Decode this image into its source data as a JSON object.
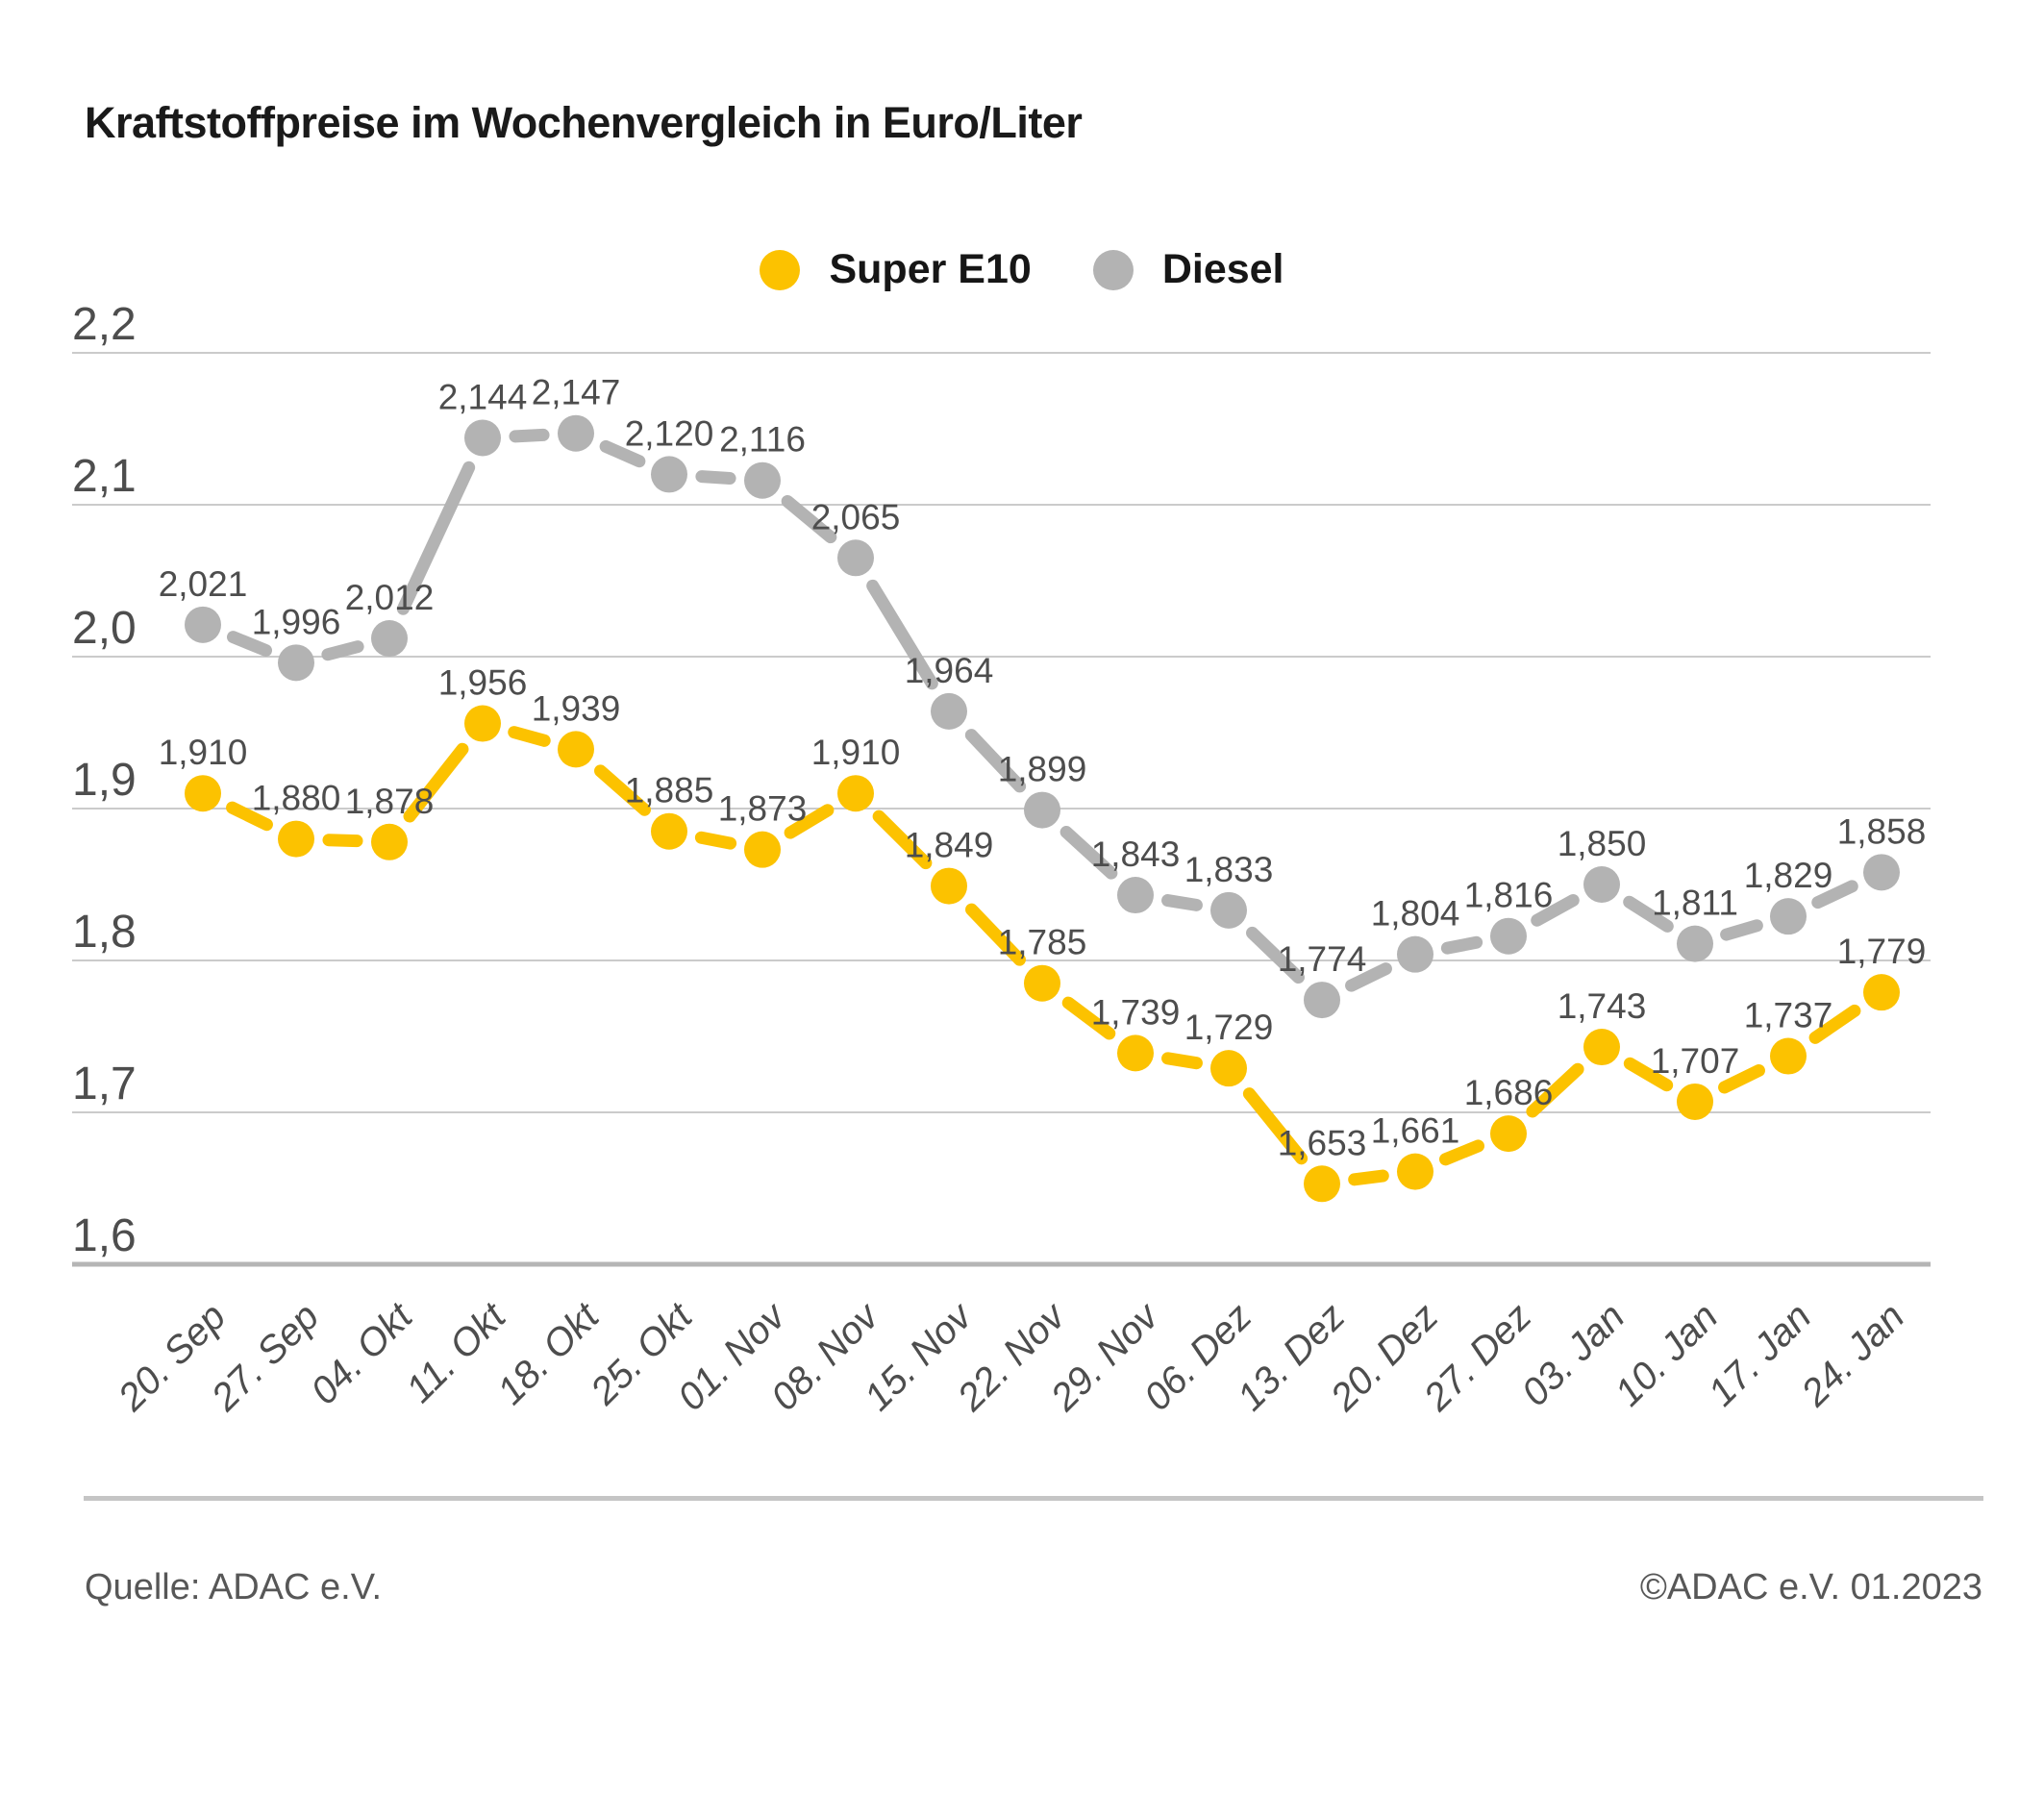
{
  "title": "Kraftstoffpreise im Wochenvergleich in Euro/Liter",
  "legend": {
    "items": [
      {
        "label": "Super E10",
        "color": "#FCC200"
      },
      {
        "label": "Diesel",
        "color": "#B3B3B3"
      }
    ]
  },
  "footer": {
    "source": "Quelle: ADAC e.V.",
    "copyright": "©ADAC e.V. 01.2023"
  },
  "chart_data": {
    "type": "line",
    "title": "Kraftstoffpreise im Wochenvergleich in Euro/Liter",
    "x_categories": [
      "20. Sep",
      "27. Sep",
      "04. Okt",
      "11. Okt",
      "18. Okt",
      "25. Okt",
      "01. Nov",
      "08. Nov",
      "15. Nov",
      "22. Nov",
      "29. Nov",
      "06. Dez",
      "13. Dez",
      "20. Dez",
      "27. Dez",
      "03. Jan",
      "10. Jan",
      "17. Jan",
      "24. Jan"
    ],
    "series": [
      {
        "name": "Super E10",
        "color": "#FCC200",
        "values": [
          1.91,
          1.88,
          1.878,
          1.956,
          1.939,
          1.885,
          1.873,
          1.91,
          1.849,
          1.785,
          1.739,
          1.729,
          1.653,
          1.661,
          1.686,
          1.743,
          1.707,
          1.737,
          1.779
        ]
      },
      {
        "name": "Diesel",
        "color": "#B3B3B3",
        "values": [
          2.021,
          1.996,
          2.012,
          2.144,
          2.147,
          2.12,
          2.116,
          2.065,
          1.964,
          1.899,
          1.843,
          1.833,
          1.774,
          1.804,
          1.816,
          1.85,
          1.811,
          1.829,
          1.858
        ]
      }
    ],
    "unit": "Euro/Liter",
    "ylim": [
      1.6,
      2.2
    ],
    "yticks": [
      2.2,
      2.1,
      2.0,
      1.9,
      1.8,
      1.7,
      1.6
    ],
    "decimal_separator": ",",
    "grid": true,
    "point_labels": true,
    "legend_position": "top-center"
  }
}
